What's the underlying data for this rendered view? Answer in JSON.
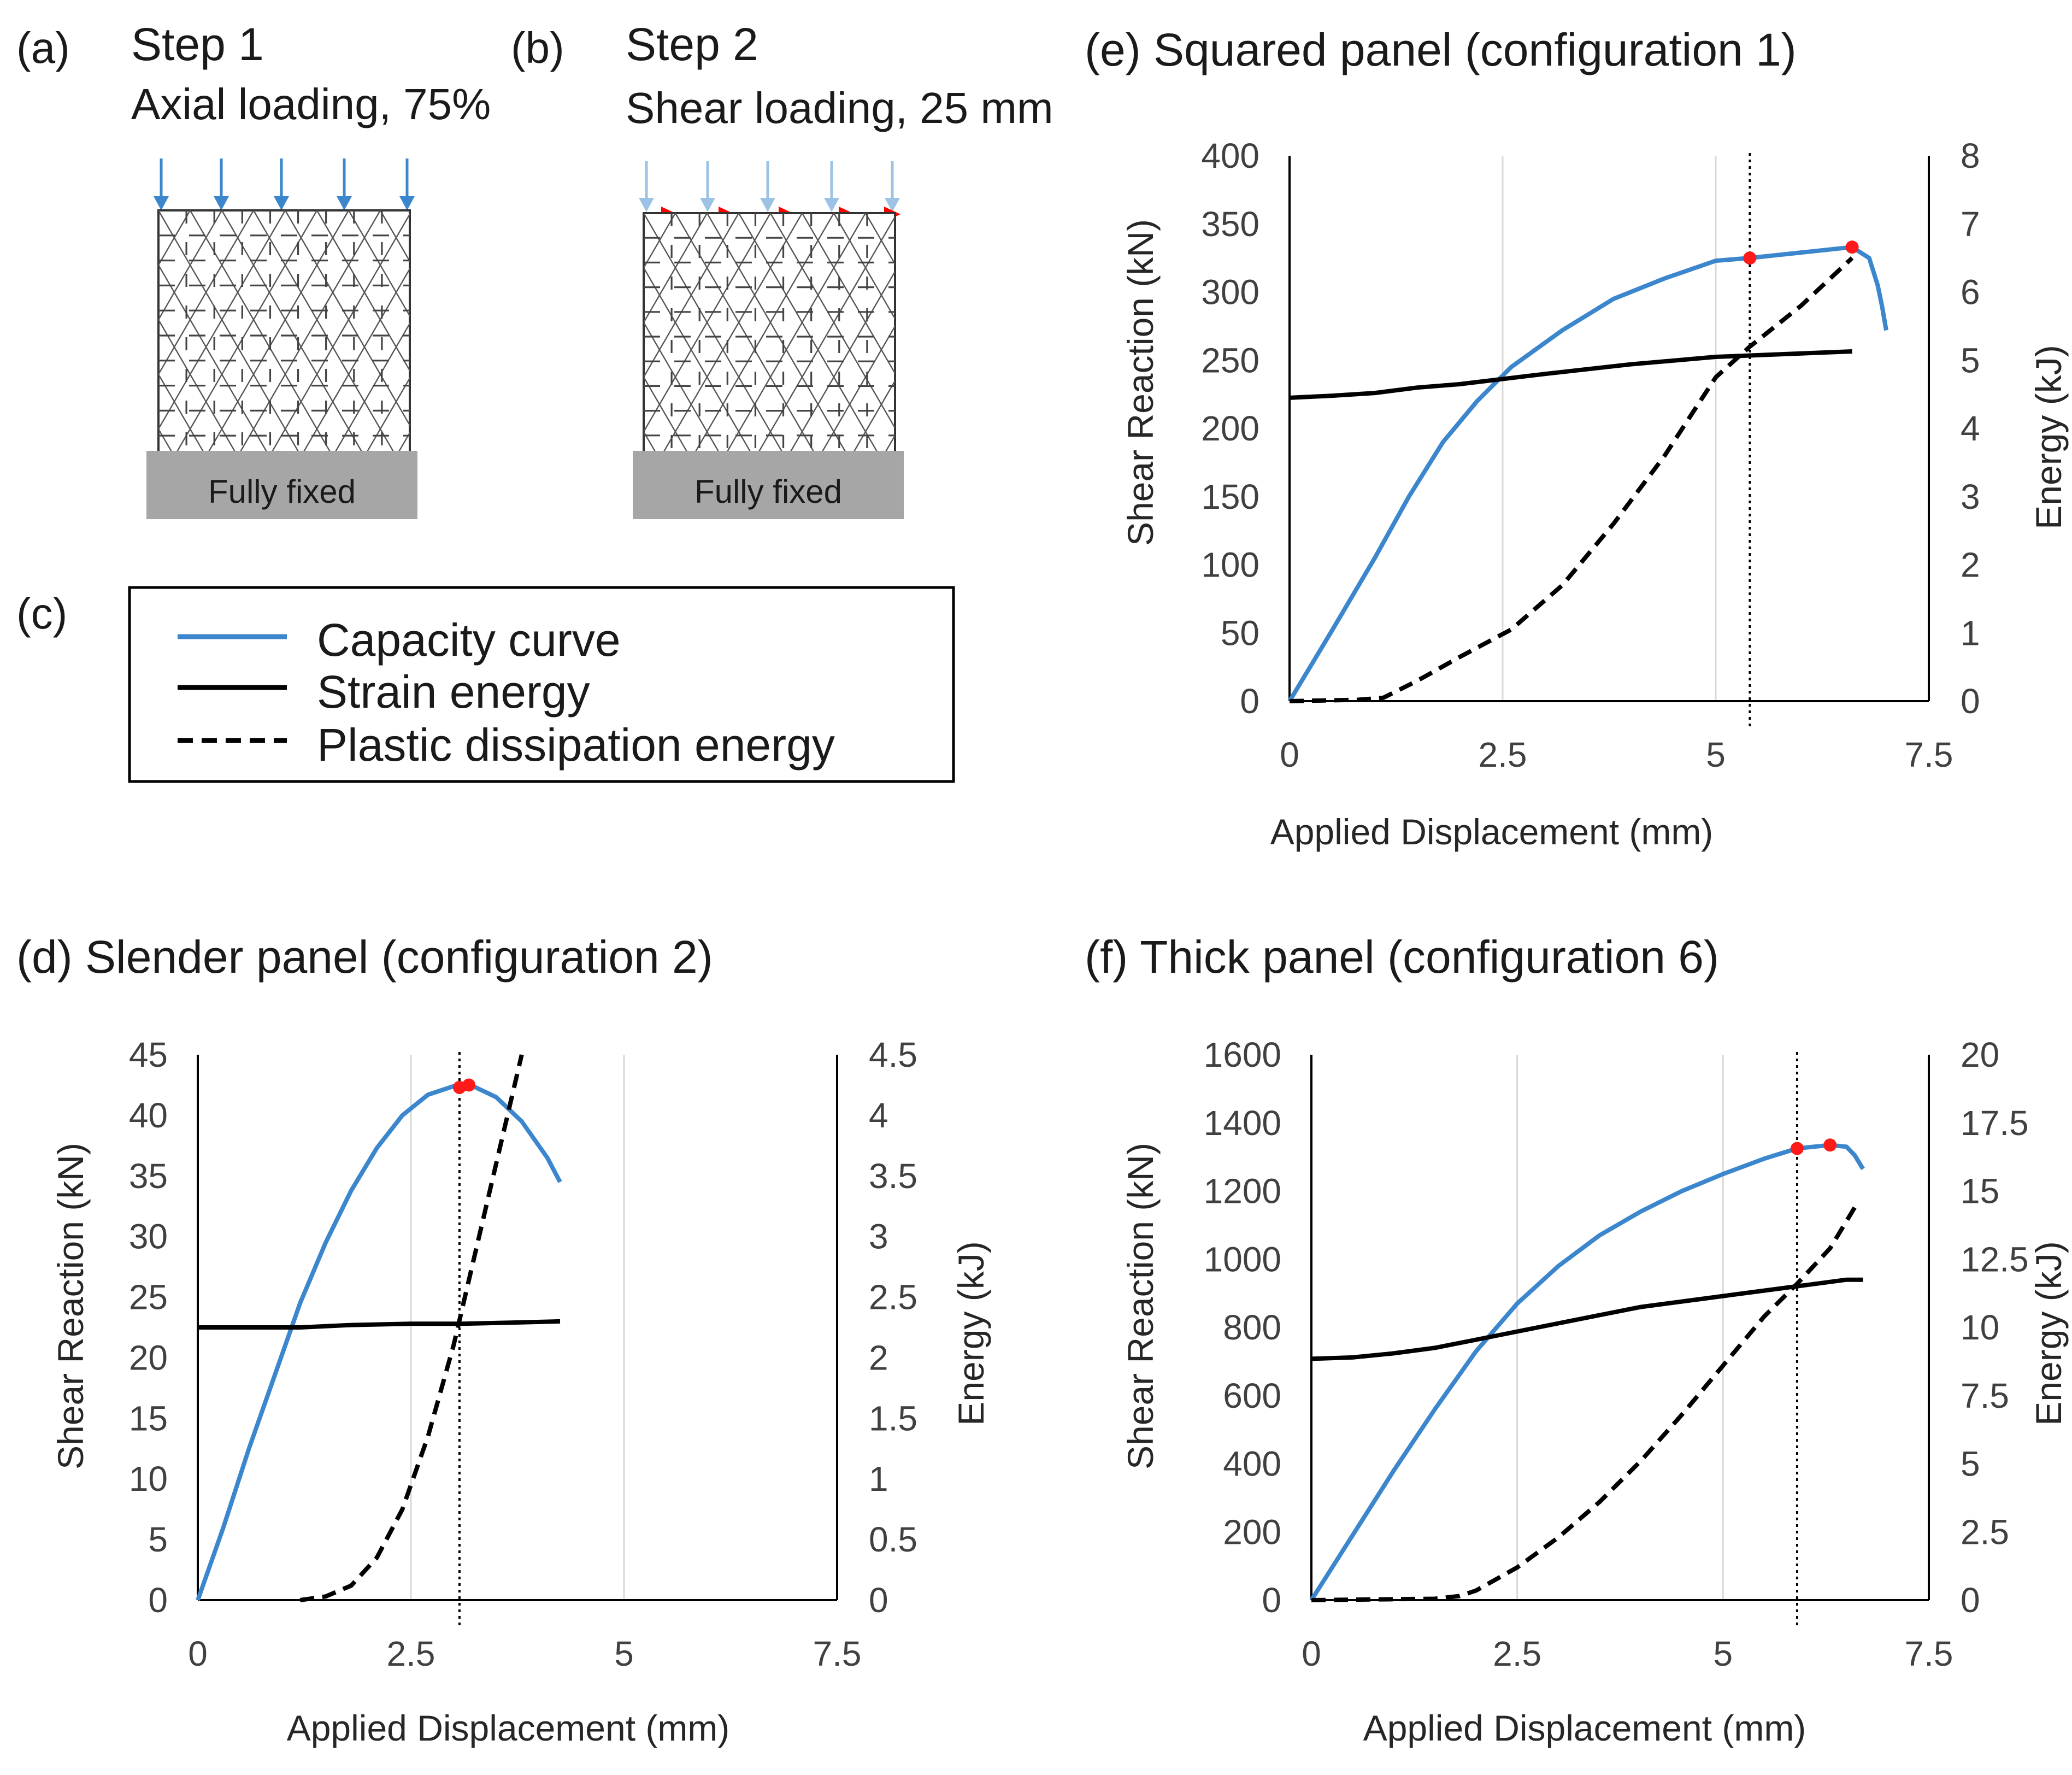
{
  "colors": {
    "capacity": "#3b86cc",
    "strain": "#000000",
    "plastic": "#000000",
    "peak_marker": "#ff1a1a",
    "grid": "#d9d9d9",
    "support": "#a6a6a6",
    "axial_arrow": "#3b86cc",
    "axial_arrow_light": "#9cc3e6",
    "shear_arrow": "#ff0000"
  },
  "panel_a": {
    "label": "(a)",
    "title": "Step 1",
    "subtitle": "Axial loading, 75%",
    "support_label": "Fully fixed",
    "arrow_icon": "down-arrow-icon"
  },
  "panel_b": {
    "label": "(b)",
    "title": "Step 2",
    "subtitle": "Shear loading, 25 mm",
    "support_label": "Fully fixed",
    "arrow_icon": "right-arrow-icon"
  },
  "panel_c": {
    "label": "(c)",
    "legend": [
      {
        "text": "Capacity curve",
        "style": "solid",
        "color": "#3b86cc"
      },
      {
        "text": "Strain energy",
        "style": "solid",
        "color": "#000000"
      },
      {
        "text": "Plastic dissipation energy",
        "style": "dashed",
        "color": "#000000"
      }
    ]
  },
  "chart_data": [
    {
      "id": "e",
      "type": "line",
      "title": "(e) Squared panel (configuration 1)",
      "xlabel": "Applied Displacement (mm)",
      "ylabel": "Shear Reaction (kN)",
      "y2label": "Energy (kJ)",
      "xlim": [
        0,
        7.5
      ],
      "xticks": [
        0,
        2.5,
        5,
        7.5
      ],
      "xtick_labels": [
        "0",
        "2.5",
        "5",
        "7.5"
      ],
      "ylim": [
        0,
        400
      ],
      "yticks": [
        0,
        50,
        100,
        150,
        200,
        250,
        300,
        350,
        400
      ],
      "ytick_labels": [
        "0",
        "50",
        "100",
        "150",
        "200",
        "250",
        "300",
        "350",
        "400"
      ],
      "y2lim": [
        0,
        8
      ],
      "y2ticks": [
        0,
        1,
        2,
        3,
        4,
        5,
        6,
        7,
        8
      ],
      "y2tick_labels": [
        "0",
        "1",
        "2",
        "3",
        "4",
        "5",
        "6",
        "7",
        "8"
      ],
      "grid": "vertical",
      "vline_x": 5.4,
      "series": [
        {
          "key": "capacity",
          "axis": "y",
          "style": "solid",
          "x": [
            0,
            0.5,
            1.0,
            1.4,
            1.8,
            2.2,
            2.6,
            3.2,
            3.8,
            4.4,
            5.0,
            5.4,
            6.0,
            6.6,
            6.8,
            6.9,
            6.95,
            7.0
          ],
          "y": [
            0,
            52,
            105,
            150,
            190,
            220,
            245,
            272,
            295,
            310,
            323,
            325,
            329,
            333,
            325,
            305,
            290,
            272
          ]
        },
        {
          "key": "strain",
          "axis": "y2",
          "style": "solid",
          "x": [
            0,
            0.5,
            1.0,
            1.5,
            2.0,
            3.0,
            4.0,
            5.0,
            6.0,
            6.6
          ],
          "y": [
            4.45,
            4.48,
            4.52,
            4.6,
            4.65,
            4.8,
            4.94,
            5.05,
            5.1,
            5.13
          ]
        },
        {
          "key": "plastic",
          "axis": "y2",
          "style": "dashed",
          "x": [
            0,
            0.8,
            1.1,
            1.5,
            2.0,
            2.6,
            3.2,
            3.8,
            4.4,
            5.0,
            5.4,
            6.0,
            6.6
          ],
          "y": [
            0,
            0.02,
            0.05,
            0.3,
            0.65,
            1.05,
            1.7,
            2.6,
            3.6,
            4.75,
            5.2,
            5.8,
            6.5
          ]
        }
      ],
      "peaks": [
        {
          "x": 5.4,
          "y": 325
        },
        {
          "x": 6.6,
          "y": 333
        }
      ]
    },
    {
      "id": "d",
      "type": "line",
      "title": "(d) Slender panel (configuration 2)",
      "xlabel": "Applied Displacement (mm)",
      "ylabel": "Shear Reaction (kN)",
      "y2label": "Energy (kJ)",
      "xlim": [
        0,
        7.5
      ],
      "xticks": [
        0,
        2.5,
        5,
        7.5
      ],
      "xtick_labels": [
        "0",
        "2.5",
        "5",
        "7.5"
      ],
      "ylim": [
        0,
        45
      ],
      "yticks": [
        0,
        5,
        10,
        15,
        20,
        25,
        30,
        35,
        40,
        45
      ],
      "ytick_labels": [
        "0",
        "5",
        "10",
        "15",
        "20",
        "25",
        "30",
        "35",
        "40",
        "45"
      ],
      "y2lim": [
        0,
        4.5
      ],
      "y2ticks": [
        0,
        0.5,
        1,
        1.5,
        2,
        2.5,
        3,
        3.5,
        4,
        4.5
      ],
      "y2tick_labels": [
        "0",
        "0.5",
        "1",
        "1.5",
        "2",
        "2.5",
        "3",
        "3.5",
        "4",
        "4.5"
      ],
      "grid": "vertical",
      "vline_x": 3.07,
      "series": [
        {
          "key": "capacity",
          "axis": "y",
          "style": "solid",
          "x": [
            0,
            0.3,
            0.6,
            0.9,
            1.2,
            1.5,
            1.8,
            2.1,
            2.4,
            2.7,
            3.0,
            3.2,
            3.5,
            3.8,
            4.1,
            4.25
          ],
          "y": [
            0,
            6,
            12.5,
            18.5,
            24.5,
            29.5,
            33.8,
            37.3,
            40,
            41.7,
            42.4,
            42.5,
            41.5,
            39.5,
            36.5,
            34.5
          ]
        },
        {
          "key": "strain",
          "axis": "y2",
          "style": "solid",
          "x": [
            0,
            0.6,
            1.2,
            1.8,
            2.5,
            3.1,
            3.7,
            4.25
          ],
          "y": [
            2.25,
            2.25,
            2.25,
            2.27,
            2.28,
            2.28,
            2.29,
            2.3
          ]
        },
        {
          "key": "plastic",
          "axis": "y2",
          "style": "dashed",
          "x": [
            1.2,
            1.5,
            1.8,
            2.1,
            2.4,
            2.7,
            3.0,
            3.2,
            3.4,
            3.6,
            3.8
          ],
          "y": [
            0,
            0.03,
            0.12,
            0.35,
            0.75,
            1.35,
            2.1,
            2.7,
            3.3,
            3.9,
            4.5
          ]
        }
      ],
      "peaks": [
        {
          "x": 3.07,
          "y": 42.3
        },
        {
          "x": 3.18,
          "y": 42.5
        }
      ]
    },
    {
      "id": "f",
      "type": "line",
      "title": "(f) Thick panel (configuration 6)",
      "xlabel": "Applied Displacement (mm)",
      "ylabel": "Shear Reaction (kN)",
      "y2label": "Energy (kJ)",
      "xlim": [
        0,
        7.5
      ],
      "xticks": [
        0,
        2.5,
        5,
        7.5
      ],
      "xtick_labels": [
        "0",
        "2.5",
        "5",
        "7.5"
      ],
      "ylim": [
        0,
        1600
      ],
      "yticks": [
        0,
        200,
        400,
        600,
        800,
        1000,
        1200,
        1400,
        1600
      ],
      "ytick_labels": [
        "0",
        "200",
        "400",
        "600",
        "800",
        "1000",
        "1200",
        "1400",
        "1600"
      ],
      "y2lim": [
        0,
        20
      ],
      "y2ticks": [
        0,
        2.5,
        5,
        7.5,
        10,
        12.5,
        15,
        17.5,
        20
      ],
      "y2tick_labels": [
        "0",
        "2.5",
        "5",
        "7.5",
        "10",
        "12.5",
        "15",
        "17.5",
        "20"
      ],
      "grid": "vertical",
      "vline_x": 5.9,
      "series": [
        {
          "key": "capacity",
          "axis": "y",
          "style": "solid",
          "x": [
            0,
            0.5,
            1.0,
            1.5,
            2.0,
            2.5,
            3.0,
            3.5,
            4.0,
            4.5,
            5.0,
            5.5,
            5.9,
            6.3,
            6.5,
            6.6,
            6.7
          ],
          "y": [
            0,
            190,
            380,
            560,
            730,
            870,
            980,
            1070,
            1140,
            1200,
            1250,
            1295,
            1325,
            1335,
            1330,
            1305,
            1265
          ]
        },
        {
          "key": "strain",
          "axis": "y2",
          "style": "solid",
          "x": [
            0,
            0.5,
            1.0,
            1.5,
            2.0,
            2.5,
            3.0,
            3.5,
            4.0,
            4.5,
            5.0,
            5.5,
            6.0,
            6.5,
            6.7
          ],
          "y": [
            8.85,
            8.9,
            9.05,
            9.25,
            9.55,
            9.85,
            10.15,
            10.45,
            10.75,
            10.95,
            11.15,
            11.35,
            11.55,
            11.75,
            11.75
          ]
        },
        {
          "key": "plastic",
          "axis": "y2",
          "style": "dashed",
          "x": [
            0,
            1.5,
            1.8,
            2.0,
            2.5,
            3.0,
            3.5,
            4.0,
            4.5,
            5.0,
            5.5,
            5.9,
            6.3,
            6.6
          ],
          "y": [
            0,
            0.05,
            0.15,
            0.35,
            1.2,
            2.3,
            3.6,
            5.1,
            6.8,
            8.6,
            10.4,
            11.6,
            12.9,
            14.4
          ]
        }
      ],
      "peaks": [
        {
          "x": 5.9,
          "y": 1325
        },
        {
          "x": 6.3,
          "y": 1335
        }
      ]
    }
  ]
}
